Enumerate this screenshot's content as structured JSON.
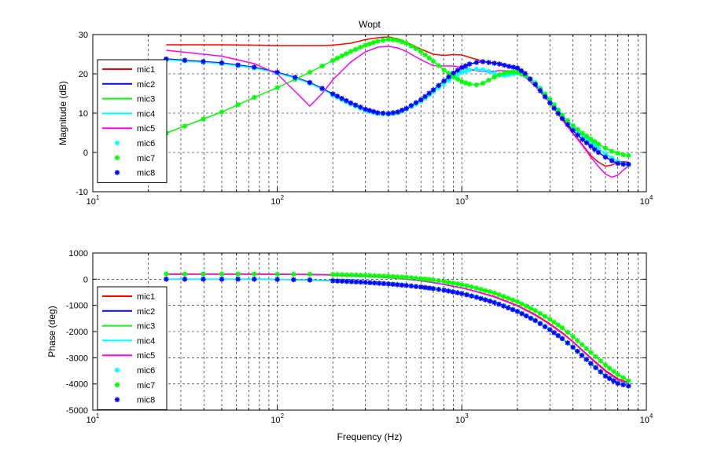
{
  "figure": {
    "background": "#ffffff"
  },
  "chart_data": [
    {
      "type": "line",
      "title": "Wopt",
      "xlabel": "",
      "ylabel": "Magnitude (dB)",
      "xscale": "log",
      "xlim": [
        10,
        10000
      ],
      "ylim": [
        -10,
        30
      ],
      "xticks": [
        10,
        100,
        1000,
        10000
      ],
      "xtick_labels": [
        {
          "base": "10",
          "exp": "1"
        },
        {
          "base": "10",
          "exp": "2"
        },
        {
          "base": "10",
          "exp": "3"
        },
        {
          "base": "10",
          "exp": "4"
        }
      ],
      "yticks": [
        -10,
        0,
        10,
        20,
        30
      ],
      "ytick_labels": [
        "-10",
        "0",
        "10",
        "20",
        "30"
      ],
      "grid": true,
      "legend_position": "bottom-left",
      "x": [
        25,
        50,
        75,
        100,
        125,
        150,
        175,
        200,
        250,
        300,
        350,
        400,
        450,
        500,
        600,
        700,
        800,
        900,
        1000,
        1100,
        1200,
        1300,
        1400,
        1500,
        1600,
        1700,
        1800,
        1900,
        2000,
        2200,
        2500,
        3000,
        3500,
        4000,
        4500,
        5000,
        5500,
        6000,
        6500,
        7000,
        7500,
        8000
      ],
      "series": [
        {
          "name": "mic1",
          "color": "#ff0000",
          "marker": "none",
          "values": [
            27.4,
            27.4,
            27.3,
            27.2,
            27.2,
            27.2,
            27.2,
            27.3,
            27.8,
            28.7,
            29.2,
            29.4,
            28.9,
            28.0,
            26.3,
            25.0,
            24.7,
            24.9,
            24.8,
            24.2,
            23.7,
            23.2,
            22.9,
            22.8,
            22.7,
            22.4,
            22.0,
            21.6,
            21.0,
            19.8,
            17.3,
            13.3,
            9.0,
            5.0,
            2.0,
            -0.8,
            -2.5,
            -3.5,
            -3.2,
            -2.5,
            -2.3,
            -2.5
          ]
        },
        {
          "name": "mic2",
          "color": "#0000ff",
          "marker": "none",
          "values": [
            23.8,
            22.8,
            21.7,
            20.4,
            19.1,
            17.8,
            16.3,
            14.9,
            12.6,
            11.0,
            10.1,
            9.9,
            10.3,
            11.2,
            13.4,
            15.9,
            18.2,
            20.2,
            21.6,
            22.5,
            22.9,
            23.1,
            22.9,
            22.7,
            22.5,
            22.2,
            21.9,
            21.7,
            21.5,
            20.1,
            17.3,
            12.6,
            8.6,
            5.6,
            3.3,
            1.6,
            0.0,
            -1.2,
            -2.1,
            -2.8,
            -3.0,
            -3.0
          ]
        },
        {
          "name": "mic3",
          "color": "#00ff00",
          "marker": "none",
          "values": [
            4.9,
            10.3,
            14.0,
            16.5,
            18.6,
            20.4,
            22.0,
            23.4,
            25.7,
            27.3,
            28.3,
            28.8,
            28.5,
            27.8,
            25.7,
            23.2,
            21.0,
            19.3,
            18.0,
            17.4,
            17.2,
            17.6,
            18.4,
            19.2,
            19.8,
            20.2,
            20.4,
            20.5,
            20.4,
            19.6,
            17.5,
            13.4,
            9.4,
            6.8,
            4.9,
            3.4,
            2.1,
            1.1,
            0.3,
            -0.2,
            -0.6,
            -0.8
          ]
        },
        {
          "name": "mic4",
          "color": "#00ffff",
          "marker": "none",
          "values": [
            23.6,
            22.6,
            21.5,
            20.2,
            18.9,
            17.6,
            16.1,
            14.6,
            12.3,
            10.7,
            9.9,
            9.7,
            10.1,
            11.0,
            13.0,
            15.4,
            17.5,
            19.2,
            20.4,
            21.0,
            21.2,
            21.0,
            20.6,
            20.1,
            19.7,
            19.6,
            19.8,
            20.0,
            20.2,
            19.7,
            17.8,
            13.5,
            9.5,
            6.6,
            4.3,
            2.6,
            1.0,
            -0.3,
            -1.4,
            -2.3,
            -2.9,
            -3.2
          ]
        },
        {
          "name": "mic5",
          "color": "#ff00ff",
          "marker": "none",
          "values": [
            26.0,
            24.5,
            22.6,
            20.0,
            15.5,
            11.8,
            15.0,
            18.5,
            23.0,
            25.6,
            26.8,
            27.0,
            26.6,
            25.7,
            23.6,
            22.1,
            22.0,
            22.0,
            21.6,
            21.1,
            20.8,
            20.6,
            20.6,
            20.7,
            20.8,
            20.8,
            20.7,
            20.5,
            20.2,
            19.2,
            16.8,
            12.6,
            8.3,
            4.8,
            1.8,
            -1.2,
            -3.6,
            -5.5,
            -6.3,
            -5.8,
            -4.5,
            -3.5
          ]
        },
        {
          "name": "mic6",
          "color": "#00ffff",
          "marker": "*",
          "values": [
            23.6,
            22.6,
            21.5,
            20.2,
            18.9,
            17.6,
            16.1,
            14.6,
            12.3,
            10.7,
            9.9,
            9.7,
            10.1,
            11.0,
            13.0,
            15.4,
            17.5,
            19.2,
            20.4,
            21.0,
            21.2,
            21.0,
            20.6,
            20.1,
            19.7,
            19.6,
            19.8,
            20.0,
            20.2,
            19.7,
            17.8,
            13.5,
            9.5,
            6.6,
            4.3,
            2.6,
            1.0,
            -0.3,
            -1.4,
            -2.3,
            -2.9,
            -3.2
          ]
        },
        {
          "name": "mic7",
          "color": "#00ff00",
          "marker": "*",
          "values": [
            4.9,
            10.3,
            14.0,
            16.5,
            18.6,
            20.4,
            22.0,
            23.4,
            25.7,
            27.3,
            28.3,
            28.8,
            28.5,
            27.8,
            25.7,
            23.2,
            21.0,
            19.3,
            18.0,
            17.4,
            17.2,
            17.6,
            18.4,
            19.2,
            19.8,
            20.2,
            20.4,
            20.5,
            20.4,
            19.6,
            17.5,
            13.4,
            9.4,
            6.8,
            4.9,
            3.4,
            2.1,
            1.1,
            0.3,
            -0.2,
            -0.6,
            -0.8
          ]
        },
        {
          "name": "mic8",
          "color": "#0000ff",
          "marker": "*",
          "values": [
            23.8,
            22.8,
            21.7,
            20.4,
            19.1,
            17.8,
            16.3,
            14.9,
            12.6,
            11.0,
            10.1,
            9.9,
            10.3,
            11.2,
            13.4,
            15.9,
            18.2,
            20.2,
            21.6,
            22.5,
            22.9,
            23.1,
            22.9,
            22.7,
            22.5,
            22.2,
            21.9,
            21.7,
            21.5,
            20.1,
            17.3,
            12.6,
            8.6,
            5.6,
            3.3,
            1.6,
            0.0,
            -1.2,
            -2.1,
            -2.8,
            -3.0,
            -3.0
          ]
        }
      ]
    },
    {
      "type": "line",
      "title": "",
      "xlabel": "Frequency (Hz)",
      "ylabel": "Phase (deg)",
      "xscale": "log",
      "xlim": [
        10,
        10000
      ],
      "ylim": [
        -5000,
        1000
      ],
      "xticks": [
        10,
        100,
        1000,
        10000
      ],
      "xtick_labels": [
        {
          "base": "10",
          "exp": "1"
        },
        {
          "base": "10",
          "exp": "2"
        },
        {
          "base": "10",
          "exp": "3"
        },
        {
          "base": "10",
          "exp": "4"
        }
      ],
      "yticks": [
        -5000,
        -4000,
        -3000,
        -2000,
        -1000,
        0,
        1000
      ],
      "ytick_labels": [
        "-5000",
        "-4000",
        "-3000",
        "-2000",
        "-1000",
        "0",
        "1000"
      ],
      "grid": true,
      "legend_position": "bottom-left",
      "x": [
        25,
        50,
        75,
        100,
        150,
        200,
        300,
        400,
        500,
        600,
        700,
        800,
        1000,
        1200,
        1500,
        2000,
        2500,
        3000,
        3500,
        4000,
        5000,
        6000,
        7000,
        8000
      ],
      "series": [
        {
          "name": "mic1",
          "color": "#ff0000",
          "marker": "none",
          "values": [
            190,
            190,
            190,
            185,
            175,
            160,
            110,
            60,
            0,
            -60,
            -130,
            -200,
            -330,
            -470,
            -660,
            -1000,
            -1350,
            -1700,
            -2040,
            -2380,
            -3000,
            -3480,
            -3800,
            -3950
          ]
        },
        {
          "name": "mic2",
          "color": "#0000ff",
          "marker": "none",
          "values": [
            0,
            0,
            0,
            -10,
            -30,
            -60,
            -120,
            -180,
            -240,
            -300,
            -360,
            -420,
            -550,
            -690,
            -890,
            -1230,
            -1580,
            -1930,
            -2270,
            -2600,
            -3220,
            -3700,
            -3980,
            -4080
          ]
        },
        {
          "name": "mic3",
          "color": "#00ff00",
          "marker": "none",
          "values": [
            200,
            200,
            200,
            195,
            190,
            180,
            150,
            110,
            70,
            20,
            -30,
            -90,
            -210,
            -340,
            -530,
            -860,
            -1200,
            -1530,
            -1860,
            -2190,
            -2800,
            -3280,
            -3640,
            -3880
          ]
        },
        {
          "name": "mic4",
          "color": "#00ffff",
          "marker": "none",
          "values": [
            0,
            0,
            0,
            -10,
            -25,
            -55,
            -115,
            -175,
            -235,
            -295,
            -355,
            -415,
            -540,
            -680,
            -880,
            -1220,
            -1570,
            -1920,
            -2260,
            -2590,
            -3200,
            -3680,
            -3960,
            -4060
          ]
        },
        {
          "name": "mic5",
          "color": "#ff00ff",
          "marker": "none",
          "values": [
            195,
            195,
            195,
            190,
            180,
            165,
            115,
            60,
            0,
            -60,
            -130,
            -200,
            -335,
            -480,
            -680,
            -1020,
            -1380,
            -1730,
            -2070,
            -2400,
            -3030,
            -3520,
            -3850,
            -4000
          ]
        },
        {
          "name": "mic6",
          "color": "#00ffff",
          "marker": "*",
          "values": [
            0,
            0,
            0,
            -10,
            -25,
            -55,
            -115,
            -175,
            -235,
            -295,
            -355,
            -415,
            -540,
            -680,
            -880,
            -1220,
            -1570,
            -1920,
            -2260,
            -2590,
            -3200,
            -3680,
            -3960,
            -4060
          ]
        },
        {
          "name": "mic7",
          "color": "#00ff00",
          "marker": "*",
          "values": [
            200,
            200,
            200,
            195,
            190,
            180,
            150,
            110,
            70,
            20,
            -30,
            -90,
            -210,
            -340,
            -530,
            -860,
            -1200,
            -1530,
            -1860,
            -2190,
            -2800,
            -3280,
            -3640,
            -3880
          ]
        },
        {
          "name": "mic8",
          "color": "#0000ff",
          "marker": "*",
          "values": [
            0,
            0,
            0,
            -10,
            -30,
            -60,
            -120,
            -180,
            -240,
            -300,
            -360,
            -420,
            -550,
            -690,
            -890,
            -1230,
            -1580,
            -1930,
            -2270,
            -2600,
            -3220,
            -3700,
            -3980,
            -4080
          ]
        }
      ]
    }
  ]
}
